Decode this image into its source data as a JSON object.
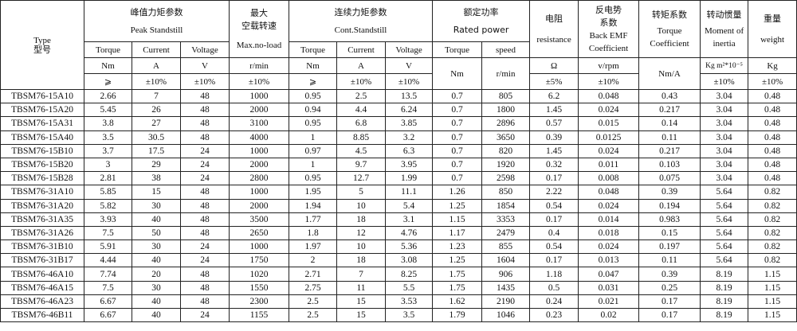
{
  "header": {
    "type": {
      "en": "Type",
      "zh": "型号"
    },
    "peak": {
      "zh": "峰值力矩参数",
      "en": "Peak Standstill"
    },
    "max": {
      "zh1": "最大",
      "zh2": "空载转速",
      "en": "Max.no-load"
    },
    "cont": {
      "zh": "连续力矩参数",
      "en": "Cont.Standstill"
    },
    "rated": {
      "zh": "额定功率",
      "en": "Rated power"
    },
    "resistance": {
      "zh": "电阻",
      "en": "resistance"
    },
    "backemf": {
      "zh1": "反电势",
      "zh2": "系数",
      "en1": "Back EMF",
      "en2": "Coefficient"
    },
    "torquecoef": {
      "zh": "转矩系数",
      "en1": "Torque",
      "en2": "Coefficient"
    },
    "inertia": {
      "zh": "转动惯量",
      "en1": "Moment of",
      "en2": "inertia"
    },
    "weight": {
      "zh": "重量",
      "en": "weight"
    },
    "sub": {
      "torque": "Torque",
      "current": "Current",
      "voltage": "Voltage",
      "speed": "speed"
    },
    "units": {
      "nm": "Nm",
      "a": "A",
      "v": "V",
      "rmin": "r/min",
      "ohm": "Ω",
      "vrpm": "v/rpm",
      "nma": "Nm/A",
      "inertia": "Kg m²*10⁻⁵",
      "kg": "Kg"
    },
    "tol": {
      "ge": "⩾",
      "p10": "±10%",
      "p5": "±5%"
    }
  },
  "rows": [
    [
      "TBSM76-15A10",
      "2.66",
      "7",
      "48",
      "1000",
      "0.95",
      "2.5",
      "13.5",
      "0.7",
      "805",
      "6.2",
      "0.048",
      "0.43",
      "3.04",
      "0.48"
    ],
    [
      "TBSM76-15A20",
      "5.45",
      "26",
      "48",
      "2000",
      "0.94",
      "4.4",
      "6.24",
      "0.7",
      "1800",
      "1.45",
      "0.024",
      "0.217",
      "3.04",
      "0.48"
    ],
    [
      "TBSM76-15A31",
      "3.8",
      "27",
      "48",
      "3100",
      "0.95",
      "6.8",
      "3.85",
      "0.7",
      "2896",
      "0.57",
      "0.015",
      "0.14",
      "3.04",
      "0.48"
    ],
    [
      "TBSM76-15A40",
      "3.5",
      "30.5",
      "48",
      "4000",
      "1",
      "8.85",
      "3.2",
      "0.7",
      "3650",
      "0.39",
      "0.0125",
      "0.11",
      "3.04",
      "0.48"
    ],
    [
      "TBSM76-15B10",
      "3.7",
      "17.5",
      "24",
      "1000",
      "0.97",
      "4.5",
      "6.3",
      "0.7",
      "820",
      "1.45",
      "0.024",
      "0.217",
      "3.04",
      "0.48"
    ],
    [
      "TBSM76-15B20",
      "3",
      "29",
      "24",
      "2000",
      "1",
      "9.7",
      "3.95",
      "0.7",
      "1920",
      "0.32",
      "0.011",
      "0.103",
      "3.04",
      "0.48"
    ],
    [
      "TBSM76-15B28",
      "2.81",
      "38",
      "24",
      "2800",
      "0.95",
      "12.7",
      "1.99",
      "0.7",
      "2598",
      "0.17",
      "0.008",
      "0.075",
      "3.04",
      "0.48"
    ],
    [
      "TBSM76-31A10",
      "5.85",
      "15",
      "48",
      "1000",
      "1.95",
      "5",
      "11.1",
      "1.26",
      "850",
      "2.22",
      "0.048",
      "0.39",
      "5.64",
      "0.82"
    ],
    [
      "TBSM76-31A20",
      "5.82",
      "30",
      "48",
      "2000",
      "1.94",
      "10",
      "5.4",
      "1.25",
      "1854",
      "0.54",
      "0.024",
      "0.194",
      "5.64",
      "0.82"
    ],
    [
      "TBSM76-31A35",
      "3.93",
      "40",
      "48",
      "3500",
      "1.77",
      "18",
      "3.1",
      "1.15",
      "3353",
      "0.17",
      "0.014",
      "0.983",
      "5.64",
      "0.82"
    ],
    [
      "TBSM76-31A26",
      "7.5",
      "50",
      "48",
      "2650",
      "1.8",
      "12",
      "4.76",
      "1.17",
      "2479",
      "0.4",
      "0.018",
      "0.15",
      "5.64",
      "0.82"
    ],
    [
      "TBSM76-31B10",
      "5.91",
      "30",
      "24",
      "1000",
      "1.97",
      "10",
      "5.36",
      "1.23",
      "855",
      "0.54",
      "0.024",
      "0.197",
      "5.64",
      "0.82"
    ],
    [
      "TBSM76-31B17",
      "4.44",
      "40",
      "24",
      "1750",
      "2",
      "18",
      "3.08",
      "1.25",
      "1604",
      "0.17",
      "0.013",
      "0.11",
      "5.64",
      "0.82"
    ],
    [
      "TBSM76-46A10",
      "7.74",
      "20",
      "48",
      "1020",
      "2.71",
      "7",
      "8.25",
      "1.75",
      "906",
      "1.18",
      "0.047",
      "0.39",
      "8.19",
      "1.15"
    ],
    [
      "TBSM76-46A15",
      "7.5",
      "30",
      "48",
      "1550",
      "2.75",
      "11",
      "5.5",
      "1.75",
      "1435",
      "0.5",
      "0.031",
      "0.25",
      "8.19",
      "1.15"
    ],
    [
      "TBSM76-46A23",
      "6.67",
      "40",
      "48",
      "2300",
      "2.5",
      "15",
      "3.53",
      "1.62",
      "2190",
      "0.24",
      "0.021",
      "0.17",
      "8.19",
      "1.15"
    ],
    [
      "TBSM76-46B11",
      "6.67",
      "40",
      "24",
      "1155",
      "2.5",
      "15",
      "3.5",
      "1.79",
      "1046",
      "0.23",
      "0.02",
      "0.17",
      "8.19",
      "1.15"
    ]
  ]
}
